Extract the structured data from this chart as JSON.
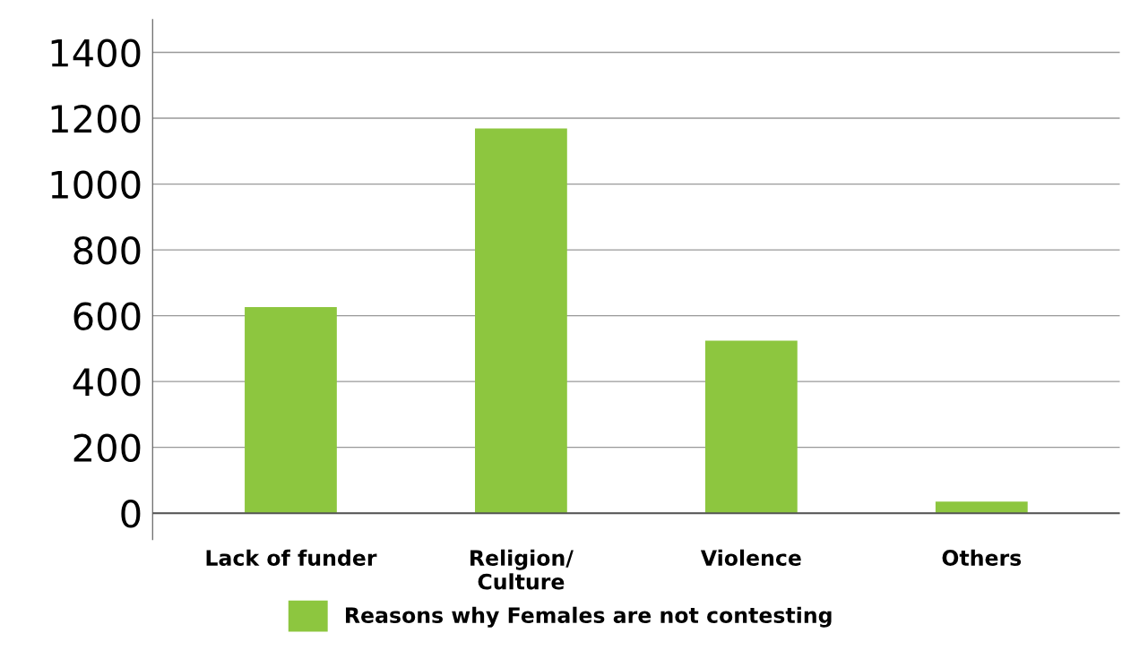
{
  "chart_data": {
    "type": "bar",
    "categories": [
      "Lack of funder",
      "Religion/\nCulture",
      "Violence",
      "Others"
    ],
    "series": [
      {
        "name": "Reasons why Females are not contesting",
        "color": "#8dc63f",
        "values": [
          626,
          1169,
          524,
          35
        ]
      }
    ],
    "ylim": [
      -80,
      1500
    ],
    "yticks": [
      0,
      200,
      400,
      600,
      800,
      1000,
      1200,
      1400
    ],
    "grid": "y",
    "legend": "bottom"
  }
}
